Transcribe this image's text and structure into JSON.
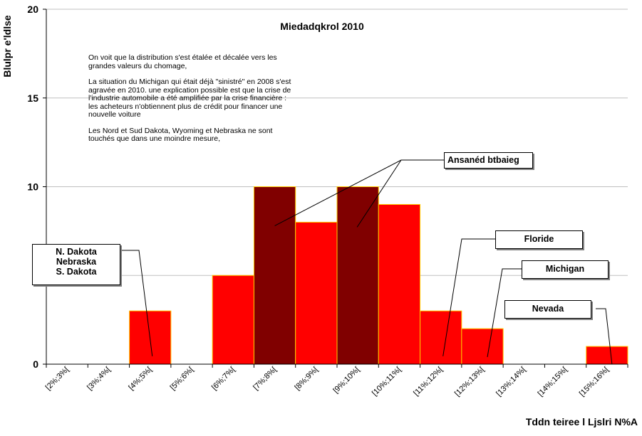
{
  "chart_data": {
    "type": "bar",
    "title": "Miedadqkrol 2010",
    "xlabel": "Tddn teiree l Ljslri N%A",
    "ylabel": "Blulpr e'ldlse",
    "ylim": [
      0,
      20
    ],
    "yticks": [
      0,
      10,
      15,
      20
    ],
    "grid": true,
    "categories": [
      "[2%;3%[",
      "[3%;4%[",
      "[4%;5%[",
      "[5%;6%[",
      "[6%;7%[",
      "[7%;8%[",
      "[8%;9%[",
      "[9%;10%[",
      "[10%;11%[",
      "[11%;12%[",
      "[12%;13%[",
      "[13%;14%[",
      "[14%;15%[",
      "[15%;16%["
    ],
    "values": [
      0,
      0,
      3,
      0,
      5,
      10,
      8,
      10,
      9,
      3,
      2,
      0,
      0,
      1
    ],
    "highlight_categories": [
      "[7%;8%[",
      "[9%;10%["
    ],
    "colors": {
      "bar": "#ff0000",
      "highlight": "#800000",
      "bar_border": "#ffcc00",
      "grid": "#c0c0c0"
    },
    "annotations": [
      {
        "label_lines": [
          "N. Dakota",
          "Nebraska",
          "S. Dakota"
        ],
        "target": "[4%;5%["
      },
      {
        "label_lines": [
          "Ansanéd btbaieg"
        ],
        "target": [
          "[7%;8%[",
          "[9%;10%["
        ]
      },
      {
        "label_lines": [
          "Floride"
        ],
        "target": "[11%;12%["
      },
      {
        "label_lines": [
          "Michigan"
        ],
        "target": "[12%;13%["
      },
      {
        "label_lines": [
          "Nevada"
        ],
        "target": "[15%;16%["
      }
    ],
    "note": [
      "On voit que la distribution s'est étalée et décalée vers les grandes valeurs du chomage,",
      "La situation du Michigan qui était déjà \"sinistré\" en 2008 s'est agravée en 2010.  une explication possible est que la crise de l'industrie automobile a été amplifiée par la crise financière : les acheteurs n'obtiennent plus de crédit pour financer une nouvelle voiture",
      "Les Nord et Sud Dakota, Wyoming et Nebraska ne sont touchés que dans une moindre mesure,"
    ]
  }
}
